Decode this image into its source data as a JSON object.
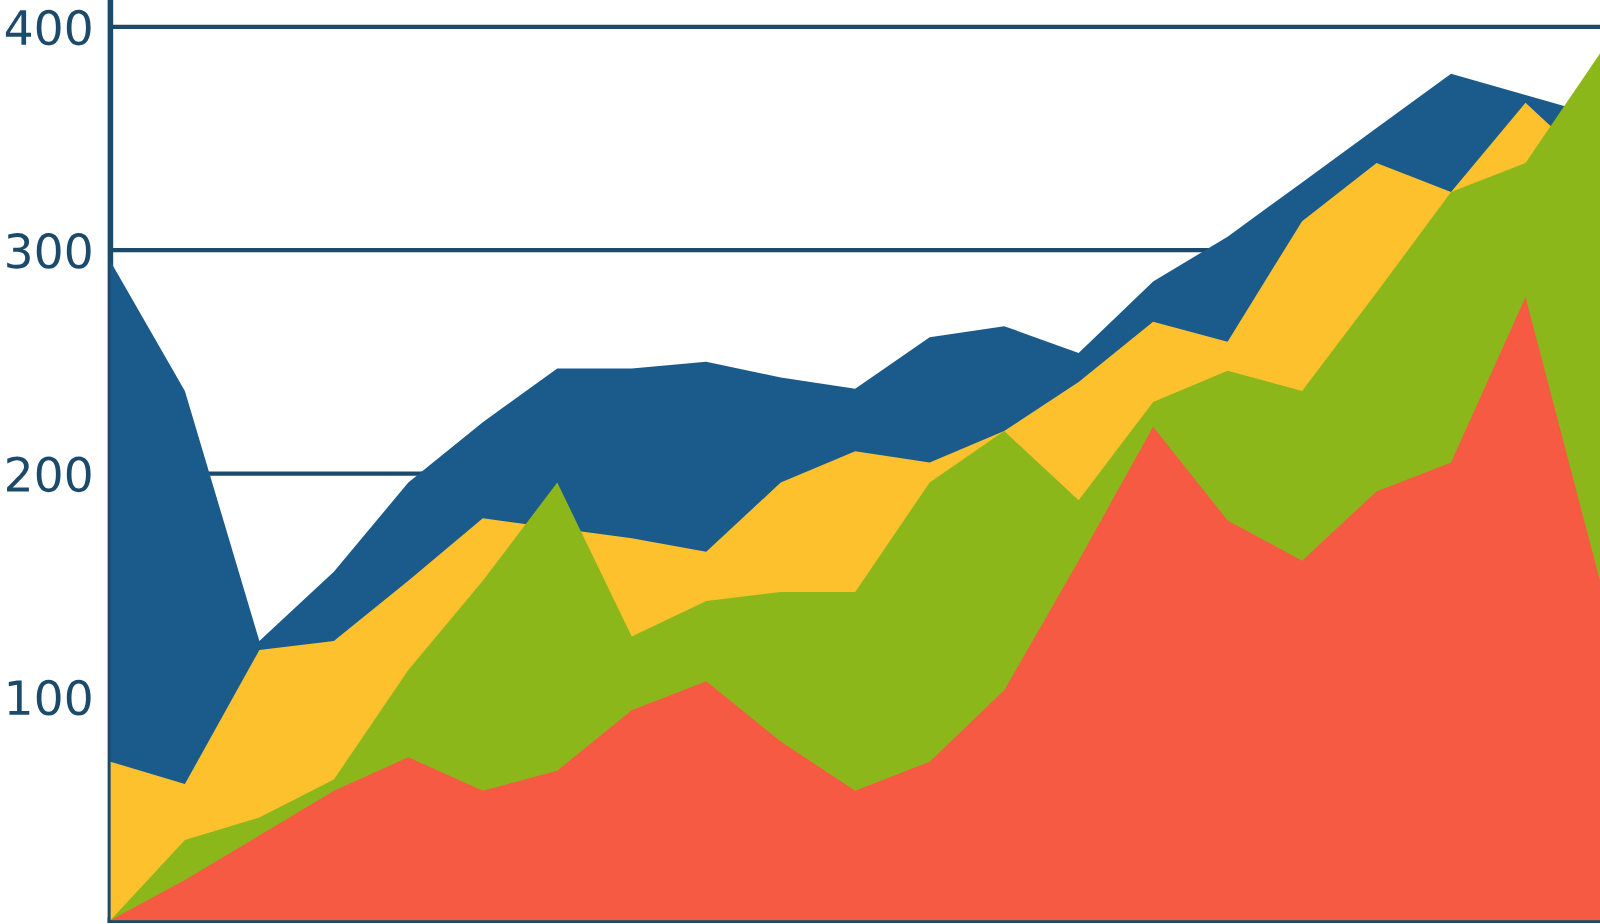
{
  "chart_data": {
    "type": "area",
    "categories": [
      null,
      null,
      null,
      null,
      null,
      null,
      null,
      null,
      null,
      null,
      null,
      null,
      null,
      null,
      null,
      null,
      null,
      null,
      null,
      null,
      null
    ],
    "series": [
      {
        "color": "#1b5b8c",
        "values": [
          295,
          237,
          125,
          156,
          196,
          223,
          247,
          247,
          250,
          243,
          238,
          261,
          266,
          254,
          286,
          306,
          null,
          null,
          379,
          null,
          360
        ]
      },
      {
        "color": "#fcc12d",
        "values": [
          71,
          61,
          121,
          125,
          152,
          180,
          null,
          171,
          165,
          196,
          210,
          205,
          219,
          241,
          268,
          259,
          313,
          339,
          326,
          366,
          335
        ]
      },
      {
        "color": "#8cb71a",
        "values": [
          0,
          36,
          46,
          63,
          112,
          152,
          196,
          127,
          143,
          147,
          147,
          196,
          219,
          188,
          232,
          246,
          237,
          281,
          326,
          339,
          388
        ]
      },
      {
        "color": "#f65a42",
        "values": [
          0,
          18,
          38,
          58,
          73,
          58,
          67,
          94,
          107,
          80,
          58,
          71,
          103,
          161,
          221,
          179,
          161,
          192,
          205,
          279,
          152
        ]
      }
    ],
    "ylim": [
      0,
      412
    ],
    "yticks": [
      100,
      200,
      300,
      400
    ],
    "grid": "y",
    "tick_labels": "y"
  }
}
